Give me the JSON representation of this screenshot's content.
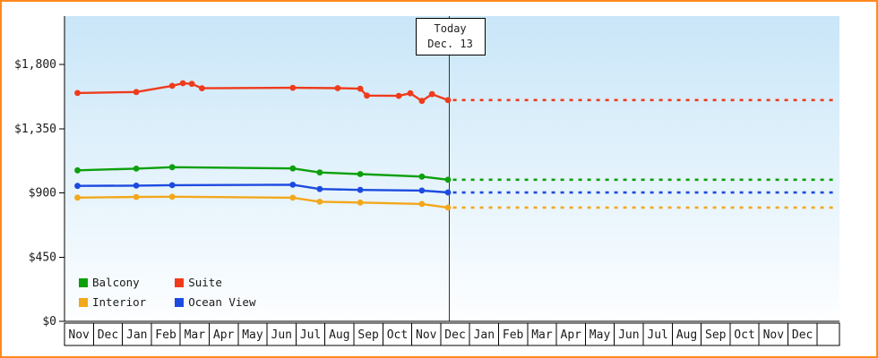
{
  "frame": {
    "border_color": "#ff8a1e",
    "background": "#ffffff"
  },
  "chart_data": {
    "type": "line",
    "title": "",
    "today": {
      "label_line1": "Today",
      "label_line2": "Dec. 13",
      "month_x": 13.3
    },
    "y_axis": {
      "min": 0,
      "max": 1800,
      "ticks": [
        {
          "label": "$0",
          "value": 0
        },
        {
          "label": "$450",
          "value": 450
        },
        {
          "label": "$900",
          "value": 900
        },
        {
          "label": "$1,350",
          "value": 1350
        },
        {
          "label": "$1,800",
          "value": 1800
        }
      ]
    },
    "x_axis": {
      "months": [
        "Nov",
        "Dec",
        "Jan",
        "Feb",
        "Mar",
        "Apr",
        "May",
        "Jun",
        "Jul",
        "Aug",
        "Sep",
        "Oct",
        "Nov",
        "Dec",
        "Jan",
        "Feb",
        "Mar",
        "Apr",
        "May",
        "Jun",
        "Jul",
        "Aug",
        "Sep",
        "Oct",
        "Nov",
        "Dec"
      ]
    },
    "plot": {
      "bg_top": "#c9e6f8",
      "bg_bottom": "#fdfeff",
      "grid": false
    },
    "series": [
      {
        "name": "Balcony",
        "color": "#0ca00c",
        "points": [
          [
            0.45,
            1058
          ],
          [
            2.48,
            1070
          ],
          [
            3.72,
            1080
          ],
          [
            7.89,
            1071
          ],
          [
            8.82,
            1043
          ],
          [
            10.22,
            1032
          ],
          [
            12.35,
            1014
          ],
          [
            13.25,
            992
          ]
        ],
        "forecast_value": 992
      },
      {
        "name": "Suite",
        "color": "#ef3b1c",
        "points": [
          [
            0.45,
            1600
          ],
          [
            2.48,
            1607
          ],
          [
            3.72,
            1650
          ],
          [
            4.09,
            1668
          ],
          [
            4.4,
            1664
          ],
          [
            4.75,
            1633
          ],
          [
            7.89,
            1636
          ],
          [
            9.44,
            1634
          ],
          [
            10.22,
            1630
          ],
          [
            10.45,
            1582
          ],
          [
            11.55,
            1580
          ],
          [
            11.95,
            1598
          ],
          [
            12.35,
            1545
          ],
          [
            12.7,
            1592
          ],
          [
            13.25,
            1550
          ]
        ],
        "forecast_value": 1550
      },
      {
        "name": "Interior",
        "color": "#f3a71b",
        "points": [
          [
            0.45,
            867
          ],
          [
            2.48,
            871
          ],
          [
            3.72,
            873
          ],
          [
            7.89,
            866
          ],
          [
            8.82,
            838
          ],
          [
            10.22,
            832
          ],
          [
            12.35,
            822
          ],
          [
            13.25,
            797
          ]
        ],
        "forecast_value": 797
      },
      {
        "name": "Ocean View",
        "color": "#1d4be0",
        "points": [
          [
            0.45,
            949
          ],
          [
            2.48,
            951
          ],
          [
            3.72,
            954
          ],
          [
            7.89,
            957
          ],
          [
            8.82,
            927
          ],
          [
            10.22,
            921
          ],
          [
            12.35,
            916
          ],
          [
            13.25,
            903
          ]
        ],
        "forecast_value": 903
      }
    ],
    "legend": {
      "rows": [
        [
          "Balcony",
          "Suite"
        ],
        [
          "Interior",
          "Ocean View"
        ]
      ]
    }
  }
}
